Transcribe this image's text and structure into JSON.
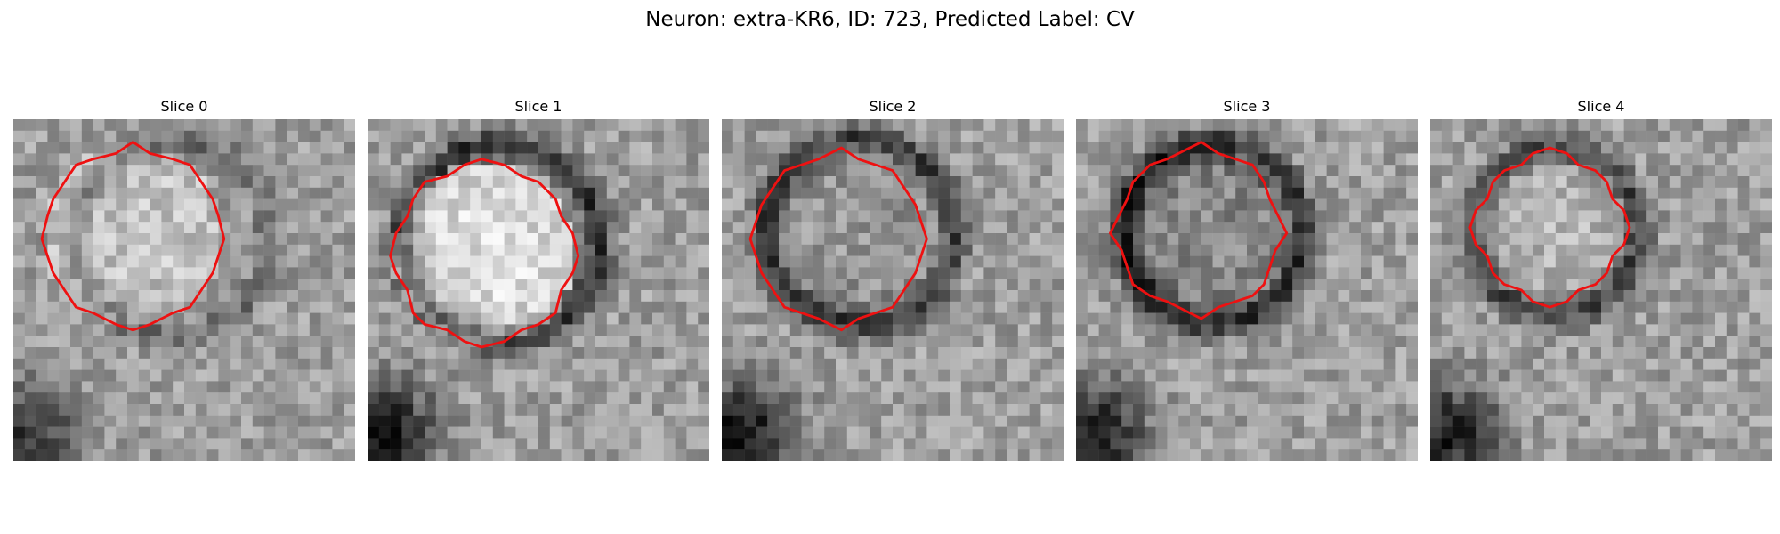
{
  "figure": {
    "title": "Neuron: extra-KR6, ID: 723, Predicted Label: CV",
    "panels": [
      {
        "title": "Slice 0"
      },
      {
        "title": "Slice 1"
      },
      {
        "title": "Slice 2"
      },
      {
        "title": "Slice 3"
      },
      {
        "title": "Slice 4"
      }
    ],
    "colors": {
      "contour": "#ee1111",
      "background": "#ffffff",
      "colormap": "grayscale"
    }
  }
}
